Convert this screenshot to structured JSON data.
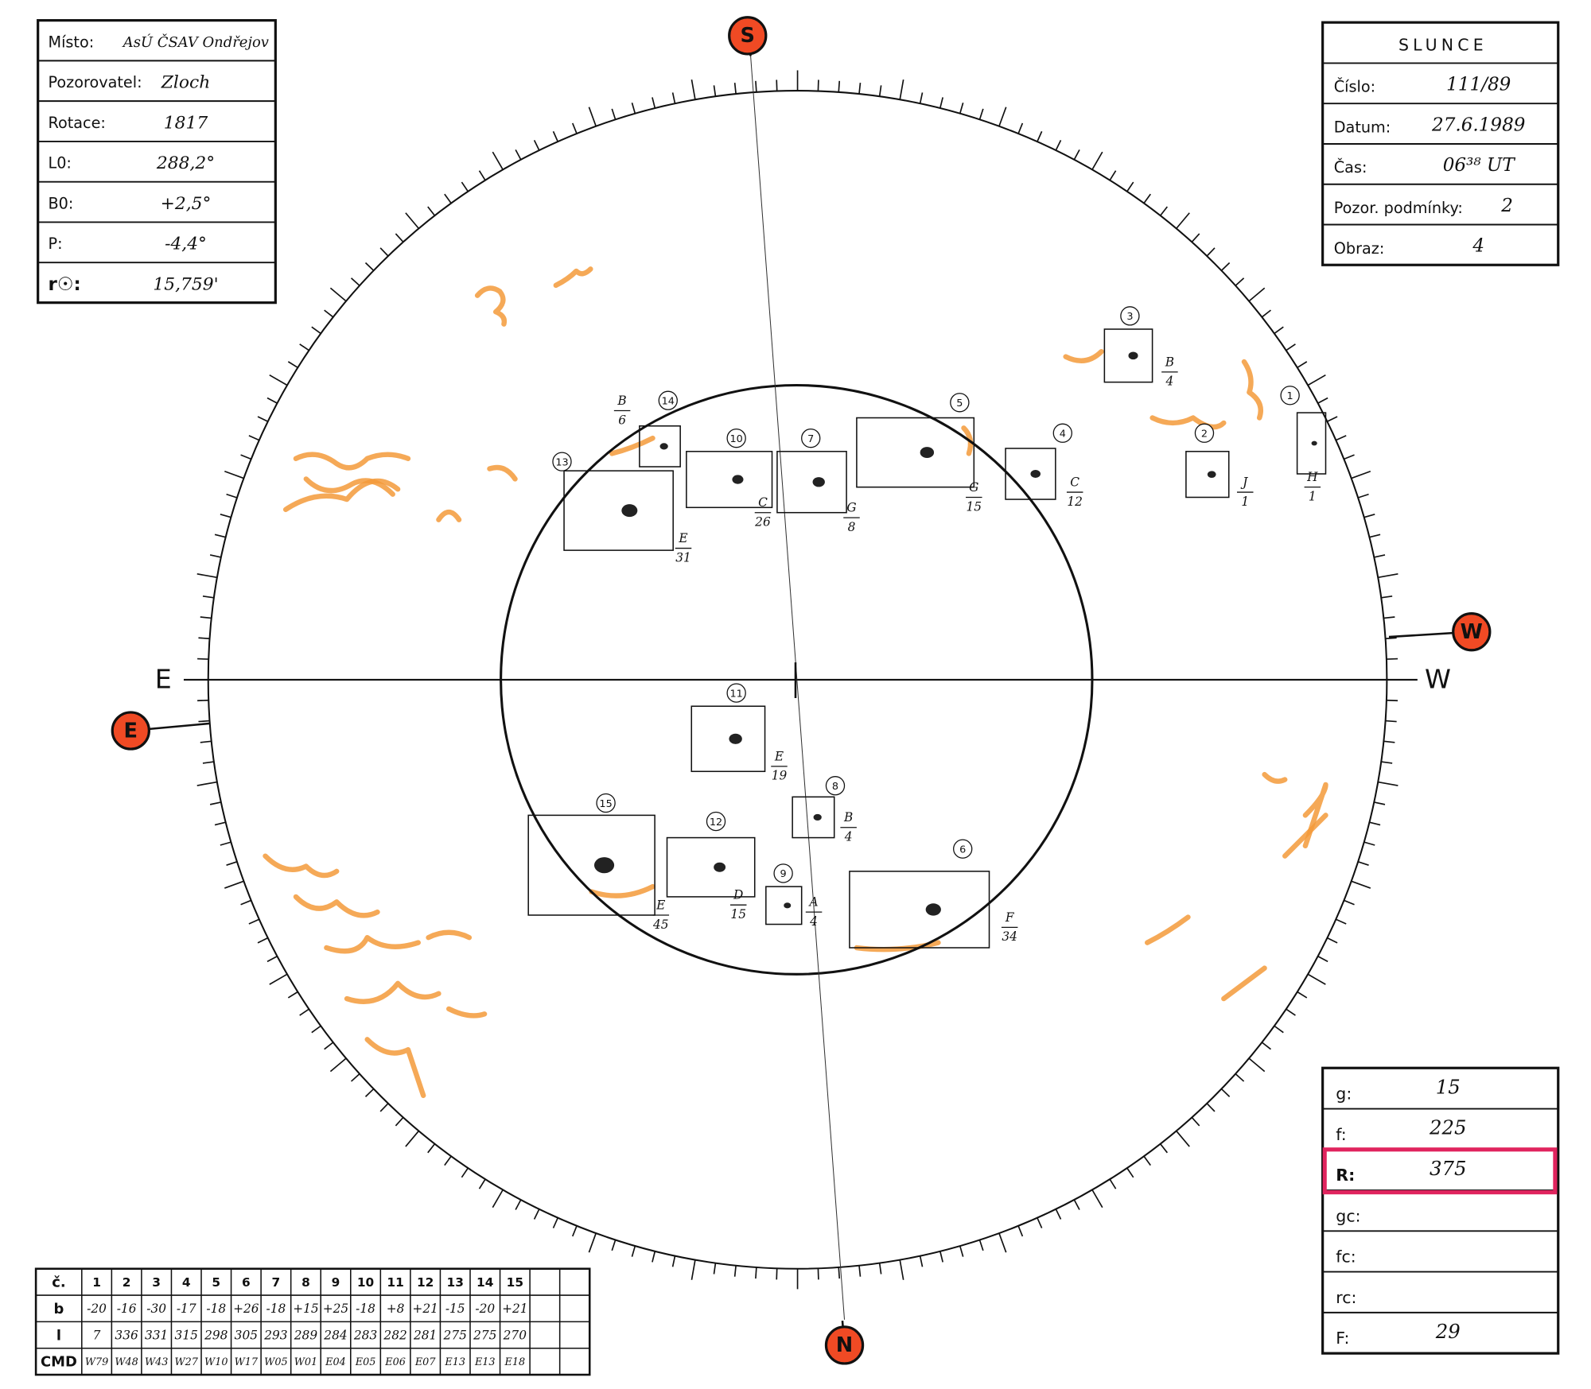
{
  "left_box": {
    "rows": [
      {
        "label": "Místo:",
        "value": "AsÚ ČSAV Ondřejov"
      },
      {
        "label": "Pozorovatel:",
        "value": "Zloch"
      },
      {
        "label": "Rotace:",
        "value": "1817"
      },
      {
        "label": "L0:",
        "value": "288,2°"
      },
      {
        "label": "B0:",
        "value": "+2,5°"
      },
      {
        "label": "P:",
        "value": "-4,4°"
      },
      {
        "label": "r☉:",
        "value": "15,759'"
      }
    ]
  },
  "right_box": {
    "title": "SLUNCE",
    "rows": [
      {
        "label": "Číslo:",
        "value": "111/89"
      },
      {
        "label": "Datum:",
        "value": "27.6.1989"
      },
      {
        "label": "Čas:",
        "value": "06³⁸ UT"
      },
      {
        "label": "Pozor. podmínky:",
        "value": "2"
      },
      {
        "label": "Obraz:",
        "value": "4"
      }
    ]
  },
  "index_box": {
    "rows": [
      {
        "label": "g:",
        "value": "15"
      },
      {
        "label": "f:",
        "value": "225"
      },
      {
        "label": "R:",
        "value": "375"
      },
      {
        "label": "gc:"
      },
      {
        "label": "fc:"
      },
      {
        "label": "rc:"
      },
      {
        "label": "F:",
        "value": "29"
      }
    ]
  },
  "group_table": {
    "header": [
      "č.",
      "1",
      "2",
      "3",
      "4",
      "5",
      "6",
      "7",
      "8",
      "9",
      "10",
      "11",
      "12",
      "13",
      "14",
      "15"
    ],
    "rows": [
      [
        "b",
        "-20",
        "-16",
        "-30",
        "-17",
        "-18",
        "+26",
        "-18",
        "+15",
        "+25",
        "-18",
        "+8",
        "+21",
        "-15",
        "-20",
        "+21"
      ],
      [
        "l",
        "7",
        "336",
        "331",
        "315",
        "298",
        "305",
        "293",
        "289",
        "284",
        "283",
        "282",
        "281",
        "275",
        "275",
        "270"
      ],
      [
        "CMD",
        "W79",
        "W48",
        "W43",
        "W27",
        "W10",
        "W17",
        "W05",
        "W01",
        "E04",
        "E05",
        "E06",
        "E07",
        "E13",
        "E13",
        "E18"
      ]
    ]
  },
  "disk": {
    "compass": {
      "S": "S",
      "W": "W",
      "N": "N",
      "E": "E"
    },
    "limb_labels": {
      "east": "E",
      "west": "W"
    },
    "groups": [
      {
        "number": "1",
        "type": "H",
        "count": "1"
      },
      {
        "number": "2",
        "type": "J",
        "count": "1"
      },
      {
        "number": "3",
        "type": "B",
        "count": "4"
      },
      {
        "number": "4",
        "type": "C",
        "count": "12"
      },
      {
        "number": "5",
        "type": "G",
        "count": "15"
      },
      {
        "number": "6",
        "type": "F",
        "count": "34"
      },
      {
        "number": "7",
        "type": "G",
        "count": "8"
      },
      {
        "number": "8",
        "type": "B",
        "count": "4"
      },
      {
        "number": "9",
        "type": "A",
        "count": "4"
      },
      {
        "number": "10",
        "type": "C",
        "count": "26"
      },
      {
        "number": "11",
        "type": "E",
        "count": "19"
      },
      {
        "number": "12",
        "type": "D",
        "count": "15"
      },
      {
        "number": "13",
        "type": "E",
        "count": "31"
      },
      {
        "number": "14",
        "type": "B",
        "count": "6"
      },
      {
        "number": "15",
        "type": "E",
        "count": "45"
      }
    ]
  }
}
